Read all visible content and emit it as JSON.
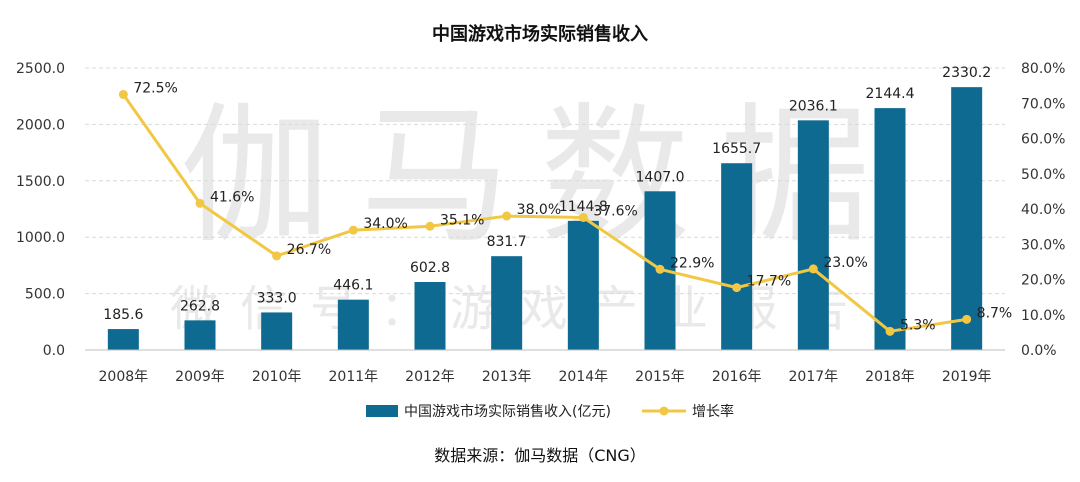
{
  "chart_data": {
    "type": "bar",
    "title": "中国游戏市场实际销售收入",
    "categories": [
      "2008年",
      "2009年",
      "2010年",
      "2011年",
      "2012年",
      "2013年",
      "2014年",
      "2015年",
      "2016年",
      "2017年",
      "2018年",
      "2019年"
    ],
    "series": [
      {
        "name": "中国游戏市场实际销售收入(亿元)",
        "type": "bar",
        "axis": "left",
        "values": [
          185.6,
          262.8,
          333.0,
          446.1,
          602.8,
          831.7,
          1144.8,
          1407.0,
          1655.7,
          2036.1,
          2144.4,
          2330.2
        ],
        "labels": [
          "185.6",
          "262.8",
          "333.0",
          "446.1",
          "602.8",
          "831.7",
          "1144.8",
          "1407.0",
          "1655.7",
          "2036.1",
          "2144.4",
          "2330.2"
        ],
        "color": "#0e6a91"
      },
      {
        "name": "增长率",
        "type": "line",
        "axis": "right",
        "values": [
          72.5,
          41.6,
          26.7,
          34.0,
          35.1,
          38.0,
          37.6,
          22.9,
          17.7,
          23.0,
          5.3,
          8.7
        ],
        "labels": [
          "72.5%",
          "41.6%",
          "26.7%",
          "34.0%",
          "35.1%",
          "38.0%",
          "37.6%",
          "22.9%",
          "17.7%",
          "23.0%",
          "5.3%",
          "8.7%"
        ],
        "color": "#f2c744"
      }
    ],
    "y_left": {
      "ylim": [
        0,
        2500
      ],
      "ticks": [
        "0.0",
        "500.0",
        "1000.0",
        "1500.0",
        "2000.0",
        "2500.0"
      ]
    },
    "y_right": {
      "ylim": [
        0,
        80
      ],
      "ticks": [
        "0.0%",
        "10.0%",
        "20.0%",
        "30.0%",
        "40.0%",
        "50.0%",
        "60.0%",
        "70.0%",
        "80.0%"
      ]
    },
    "grid": true,
    "legend_position": "bottom",
    "source": "数据来源：伽马数据（CNG）"
  },
  "watermark": {
    "big": "伽马数据",
    "small": "微信号：游戏产业报告"
  }
}
